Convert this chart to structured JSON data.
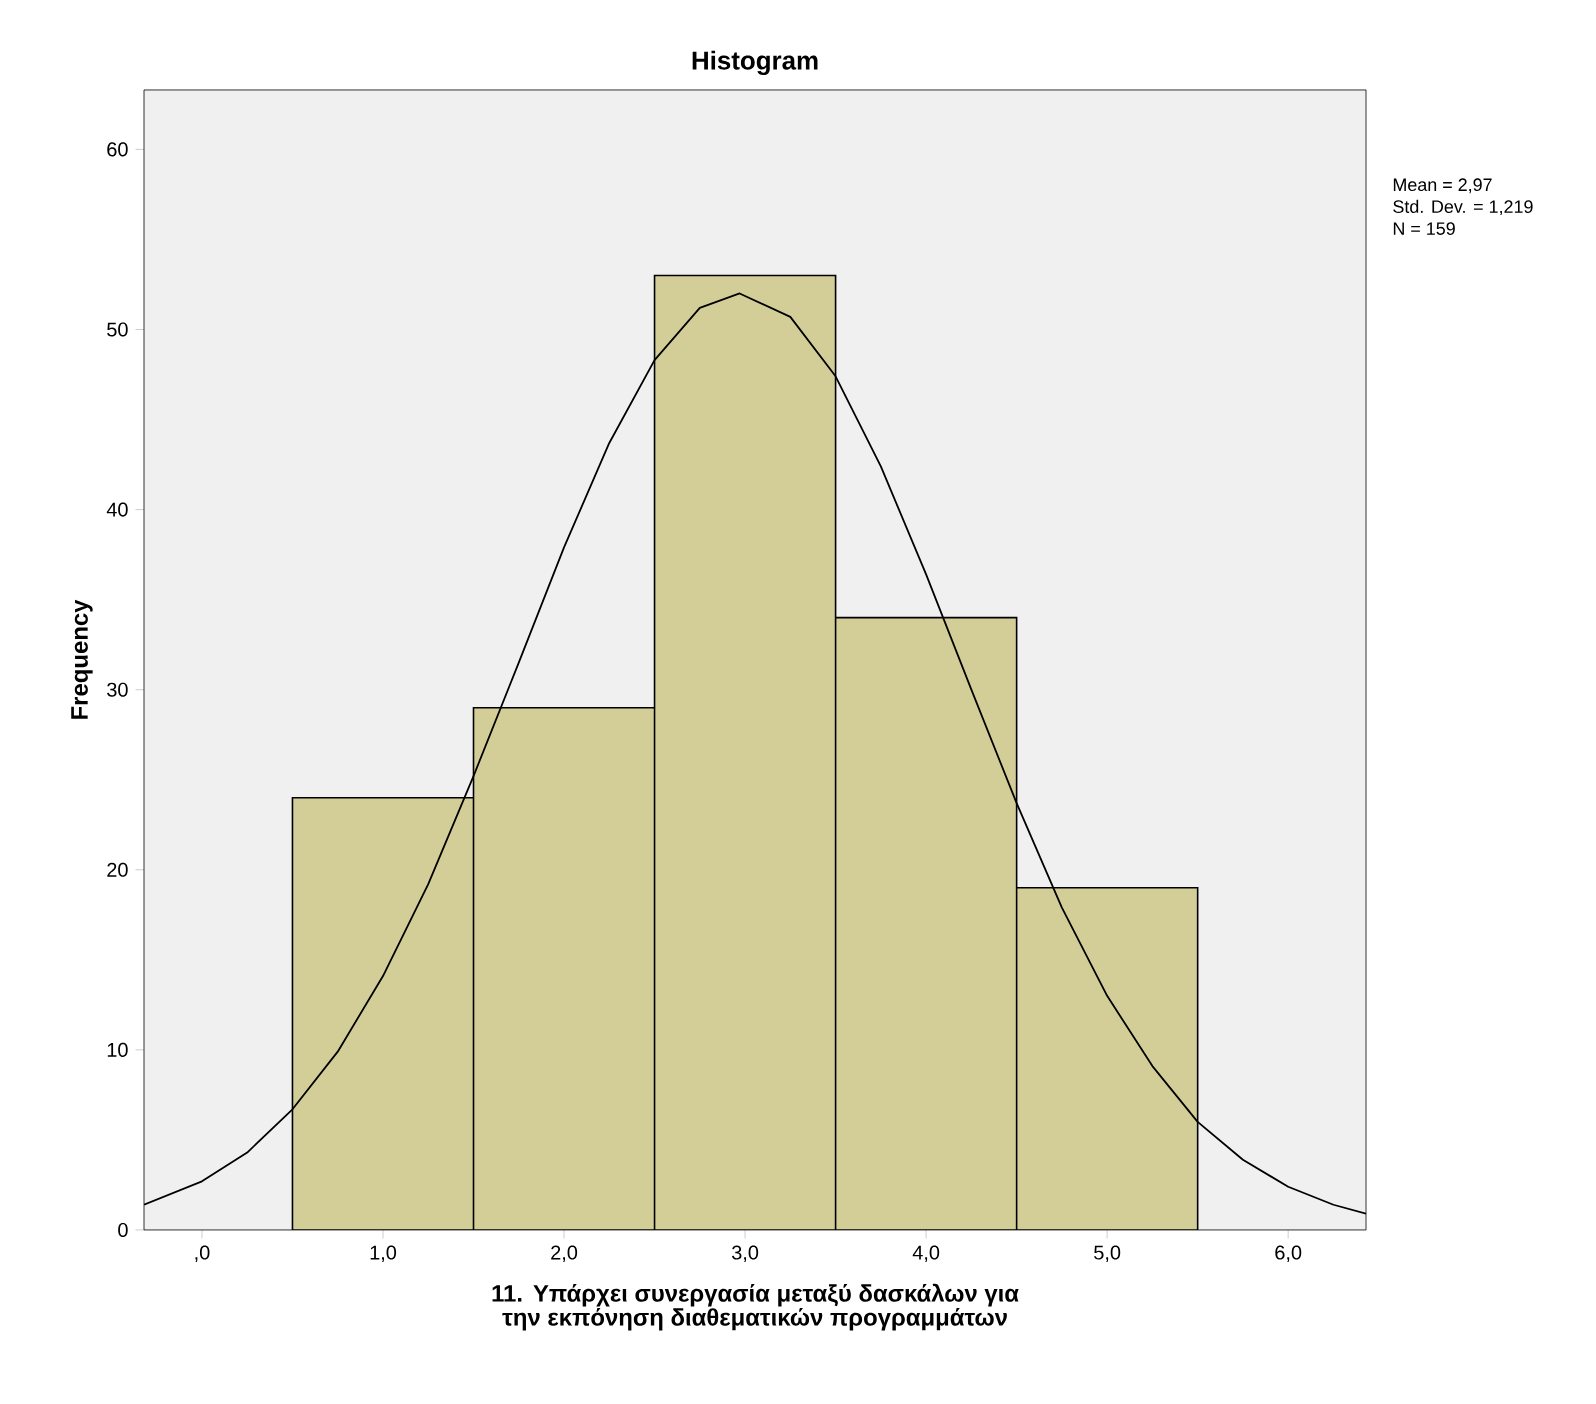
{
  "chart_data": {
    "type": "histogram",
    "title": "Histogram",
    "xlabel": "11. Υπάρχει συνεργασία  μεταξύ δασκάλων για την εκπόνηση διαθεματικών προγραμμάτων",
    "ylabel": "Frequency",
    "bins": [
      0.5,
      1.5,
      2.5,
      3.5,
      4.5,
      5.5
    ],
    "values": [
      24,
      29,
      53,
      34,
      19
    ],
    "color": "#d3ce97",
    "series": [
      {
        "type": "line",
        "color": "#000000",
        "x": [
          -0.32,
          0,
          0.25,
          0.5,
          0.75,
          1,
          1.25,
          1.5,
          1.75,
          2,
          2.25,
          2.5,
          2.75,
          2.97,
          3.25,
          3.5,
          3.75,
          4,
          4.25,
          4.5,
          4.75,
          5,
          5.25,
          5.5,
          5.75,
          6,
          6.25,
          6.43
        ],
        "values": [
          1.4,
          2.7,
          4.3,
          6.7,
          9.9,
          14.1,
          19.2,
          25.2,
          31.5,
          37.9,
          43.7,
          48.3,
          51.2,
          52,
          50.7,
          47.4,
          42.4,
          36.4,
          30,
          23.7,
          17.9,
          13,
          9.1,
          6,
          3.9,
          2.4,
          1.4,
          0.9
        ]
      }
    ],
    "annotations": [
      "Mean = 2,97",
      "Std. Dev. = 1,219",
      "N = 159"
    ],
    "xlim": [
      -0.32,
      6.43
    ],
    "ylim": [
      0,
      63.3
    ],
    "xticks": [
      {
        "value": 0,
        "label": ",0"
      },
      {
        "value": 1,
        "label": "1,0"
      },
      {
        "value": 2,
        "label": "2,0"
      },
      {
        "value": 3,
        "label": "3,0"
      },
      {
        "value": 4,
        "label": "4,0"
      },
      {
        "value": 5,
        "label": "5,0"
      },
      {
        "value": 6,
        "label": "6,0"
      }
    ],
    "yticks": [
      0,
      10,
      20,
      30,
      40,
      50,
      60
    ],
    "grid": false
  }
}
